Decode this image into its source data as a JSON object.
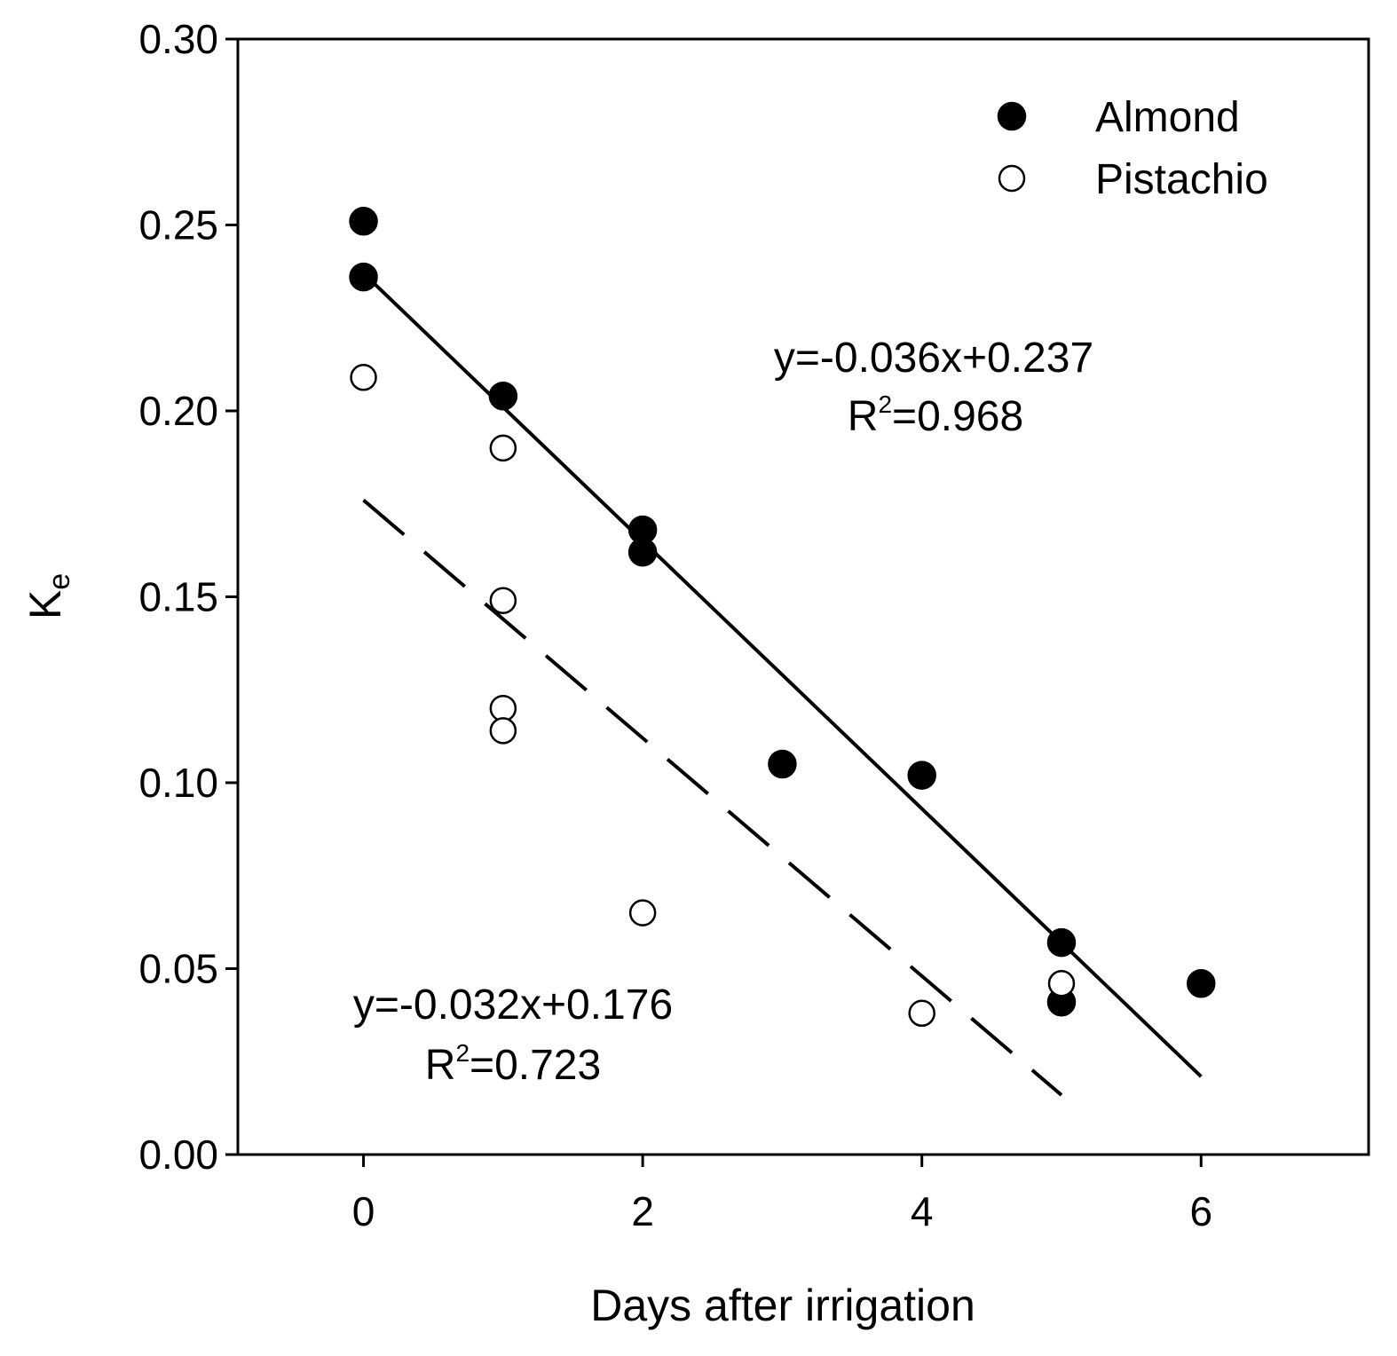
{
  "chart_data": {
    "type": "scatter",
    "title": "",
    "xlabel": "Days after irrigation",
    "ylabel": {
      "main": "K",
      "subscript": "e"
    },
    "xlim": [
      -0.9,
      7.2
    ],
    "ylim": [
      0,
      0.3
    ],
    "xticks": [
      {
        "value": 0,
        "label": "0"
      },
      {
        "value": 2,
        "label": "2"
      },
      {
        "value": 4,
        "label": "4"
      },
      {
        "value": 6,
        "label": "6"
      }
    ],
    "yticks": [
      {
        "value": 0.0,
        "label": "0.00"
      },
      {
        "value": 0.05,
        "label": "0.05"
      },
      {
        "value": 0.1,
        "label": "0.10"
      },
      {
        "value": 0.15,
        "label": "0.15"
      },
      {
        "value": 0.2,
        "label": "0.20"
      },
      {
        "value": 0.25,
        "label": "0.25"
      },
      {
        "value": 0.3,
        "label": "0.30"
      }
    ],
    "grid": false,
    "legend_position": "top-right",
    "series": [
      {
        "name": "Almond",
        "marker": "filled-circle",
        "color": "#000000",
        "points": [
          {
            "x": 0,
            "y": 0.251
          },
          {
            "x": 0,
            "y": 0.236
          },
          {
            "x": 1,
            "y": 0.204
          },
          {
            "x": 2,
            "y": 0.168
          },
          {
            "x": 2,
            "y": 0.162
          },
          {
            "x": 3,
            "y": 0.105
          },
          {
            "x": 4,
            "y": 0.102
          },
          {
            "x": 5,
            "y": 0.057
          },
          {
            "x": 5,
            "y": 0.041
          },
          {
            "x": 6,
            "y": 0.046
          }
        ],
        "fit": {
          "slope": -0.036,
          "intercept": 0.237,
          "x_range": [
            0,
            6
          ],
          "style": "solid"
        },
        "annotation": {
          "equation": "y=-0.036x+0.237",
          "r2_prefix": "R",
          "r2_sup": "2",
          "r2_value": "=0.968"
        }
      },
      {
        "name": "Pistachio",
        "marker": "open-circle",
        "color": "#000000",
        "points": [
          {
            "x": 0,
            "y": 0.209
          },
          {
            "x": 1,
            "y": 0.19
          },
          {
            "x": 1,
            "y": 0.149
          },
          {
            "x": 1,
            "y": 0.12
          },
          {
            "x": 1,
            "y": 0.114
          },
          {
            "x": 2,
            "y": 0.065
          },
          {
            "x": 4,
            "y": 0.038
          },
          {
            "x": 5,
            "y": 0.046
          }
        ],
        "fit": {
          "slope": -0.032,
          "intercept": 0.176,
          "x_range": [
            0,
            5
          ],
          "style": "dashed"
        },
        "annotation": {
          "equation": "y=-0.032x+0.176",
          "r2_prefix": "R",
          "r2_sup": "2",
          "r2_value": "=0.723"
        }
      }
    ]
  }
}
